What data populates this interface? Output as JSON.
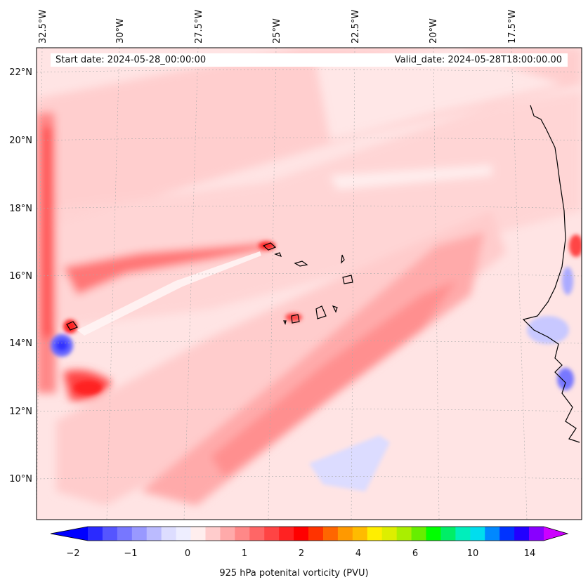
{
  "header": {
    "start_date": "Start date: 2024-05-28_00:00:00",
    "valid_date": "Valid_date: 2024-05-28T18:00:00.00"
  },
  "map": {
    "lon_labels": [
      "32.5°W",
      "30°W",
      "27.5°W",
      "25°W",
      "22.5°W",
      "20°W",
      "17.5°W"
    ],
    "lat_labels": [
      "22°N",
      "20°N",
      "18°N",
      "16°N",
      "14°N",
      "12°N",
      "10°N"
    ],
    "gridlines": true,
    "coastline_color": "#000000"
  },
  "colorbar": {
    "label": "925 hPa potenital vorticity (PVU)",
    "ticks": [
      "−2",
      "−1",
      "0",
      "1",
      "2",
      "4",
      "6",
      "10",
      "14"
    ],
    "extend": "both",
    "colors": [
      "#0000ff",
      "#2a2aff",
      "#5555ff",
      "#7777ff",
      "#9999ff",
      "#bbbbff",
      "#ddddff",
      "#eeeeff",
      "#ffeeee",
      "#ffcccc",
      "#ffaaaa",
      "#ff8888",
      "#ff6666",
      "#ff4444",
      "#ff2222",
      "#ff0000",
      "#ff3300",
      "#ff6600",
      "#ff9900",
      "#ffbb00",
      "#ffee00",
      "#ddee00",
      "#aaee00",
      "#66ee00",
      "#00ff00",
      "#00ee66",
      "#00eebb",
      "#00ddee",
      "#0088ff",
      "#0033ff",
      "#2200ff",
      "#8800ff",
      "#cc00ff"
    ]
  }
}
